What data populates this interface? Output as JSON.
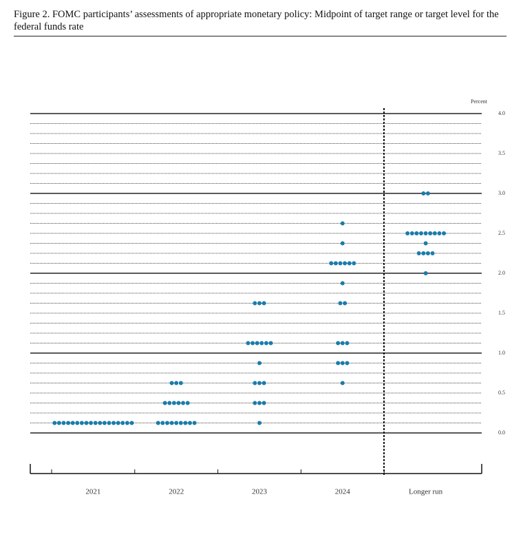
{
  "chart_data": {
    "type": "dot",
    "title": "Figure 2.  FOMC participants’ assessments of appropriate monetary policy: Midpoint of target range or target level for the federal funds rate",
    "y_label": "Percent",
    "categories": [
      "2021",
      "2022",
      "2023",
      "2024",
      "Longer run"
    ],
    "values": [
      [
        0.125,
        0.125,
        0.125,
        0.125,
        0.125,
        0.125,
        0.125,
        0.125,
        0.125,
        0.125,
        0.125,
        0.125,
        0.125,
        0.125,
        0.125,
        0.125,
        0.125,
        0.125
      ],
      [
        0.125,
        0.125,
        0.125,
        0.125,
        0.125,
        0.125,
        0.125,
        0.125,
        0.125,
        0.375,
        0.375,
        0.375,
        0.375,
        0.375,
        0.375,
        0.625,
        0.625,
        0.625
      ],
      [
        0.125,
        0.375,
        0.375,
        0.375,
        0.625,
        0.625,
        0.625,
        0.875,
        1.125,
        1.125,
        1.125,
        1.125,
        1.125,
        1.125,
        1.625,
        1.625,
        1.625
      ],
      [
        0.625,
        0.875,
        0.875,
        0.875,
        1.125,
        1.125,
        1.125,
        1.625,
        1.625,
        1.875,
        2.125,
        2.125,
        2.125,
        2.125,
        2.125,
        2.125,
        2.375,
        2.625
      ],
      [
        2,
        2.25,
        2.25,
        2.25,
        2.25,
        2.375,
        2.5,
        2.5,
        2.5,
        2.5,
        2.5,
        2.5,
        2.5,
        2.5,
        2.5,
        3,
        3
      ]
    ],
    "color": "#1b7cab",
    "ylim": [
      0,
      4
    ],
    "yticks": [
      {
        "value": 0,
        "label": "0.0"
      },
      {
        "value": 0.5,
        "label": "0.5"
      },
      {
        "value": 1,
        "label": "1.0"
      },
      {
        "value": 1.5,
        "label": "1.5"
      },
      {
        "value": 2,
        "label": "2.0"
      },
      {
        "value": 2.5,
        "label": "2.5"
      },
      {
        "value": 3,
        "label": "3.0"
      },
      {
        "value": 3.5,
        "label": "3.5"
      },
      {
        "value": 4,
        "label": "4.0"
      }
    ],
    "yminor": [
      0.125,
      0.25,
      0.375,
      0.625,
      0.75,
      0.875,
      1.125,
      1.25,
      1.375,
      1.625,
      1.75,
      1.875,
      2.125,
      2.25,
      2.375,
      2.625,
      2.75,
      2.875,
      3.125,
      3.25,
      3.375,
      3.625,
      3.75,
      3.875
    ],
    "grid": true
  }
}
